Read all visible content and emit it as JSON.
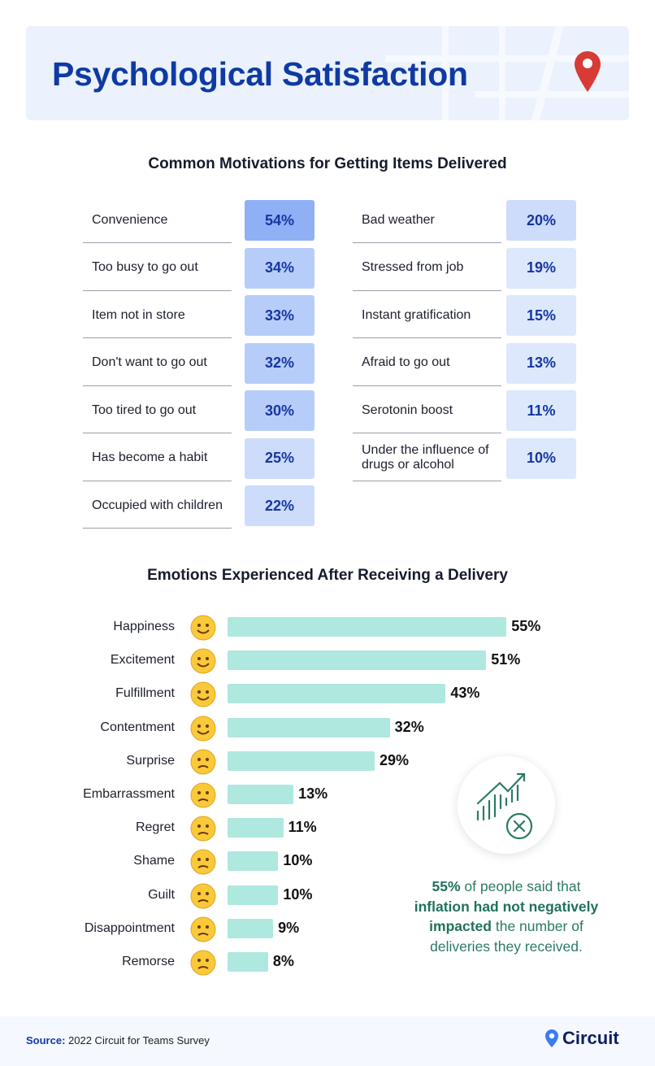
{
  "header": {
    "title": "Psychological Satisfaction",
    "pin_icon": "map-pin-icon"
  },
  "motivations": {
    "title": "Common Motivations for Getting Items Delivered",
    "left": [
      {
        "label": "Convenience",
        "value": "54%"
      },
      {
        "label": "Too busy to go out",
        "value": "34%"
      },
      {
        "label": "Item not in store",
        "value": "33%"
      },
      {
        "label": "Don't want to go out",
        "value": "32%"
      },
      {
        "label": "Too tired to go out",
        "value": "30%"
      },
      {
        "label": "Has become a habit",
        "value": "25%"
      },
      {
        "label": "Occupied with children",
        "value": "22%"
      }
    ],
    "right": [
      {
        "label": "Bad weather",
        "value": "20%"
      },
      {
        "label": "Stressed from job",
        "value": "19%"
      },
      {
        "label": "Instant gratification",
        "value": "15%"
      },
      {
        "label": "Afraid to go out",
        "value": "13%"
      },
      {
        "label": "Serotonin boost",
        "value": "11%"
      },
      {
        "label": "Under the influence of drugs or alcohol",
        "value": "10%"
      }
    ]
  },
  "chart_data": {
    "type": "bar",
    "orientation": "horizontal",
    "title": "Emotions Experienced After Receiving a Delivery",
    "categories": [
      "Happiness",
      "Excitement",
      "Fulfillment",
      "Contentment",
      "Surprise",
      "Embarrassment",
      "Regret",
      "Shame",
      "Guilt",
      "Disappointment",
      "Remorse"
    ],
    "values": [
      55,
      51,
      43,
      32,
      29,
      13,
      11,
      10,
      10,
      9,
      8
    ],
    "labels": [
      "55%",
      "51%",
      "43%",
      "32%",
      "29%",
      "13%",
      "11%",
      "10%",
      "10%",
      "9%",
      "8%"
    ],
    "icons": [
      "grinning-face-icon",
      "star-struck-face-icon",
      "slightly-smiling-face-icon",
      "relieved-face-icon",
      "surprised-face-icon",
      "flushed-face-icon",
      "downcast-sweat-face-icon",
      "peeking-face-icon",
      "confounded-face-icon",
      "disappointed-face-icon",
      "tired-face-icon"
    ],
    "bar_color": "#aee8de",
    "grid": false
  },
  "callout": {
    "icon": "chart-growth-cancel-icon",
    "stat": "55%",
    "t1": " of people said that ",
    "b1": "inflation had not negatively impacted",
    "t2": " the number of deliveries they received."
  },
  "footer": {
    "source_label": "Source:",
    "source_text": " 2022 Circuit for Teams Survey",
    "logo": "Circuit"
  }
}
